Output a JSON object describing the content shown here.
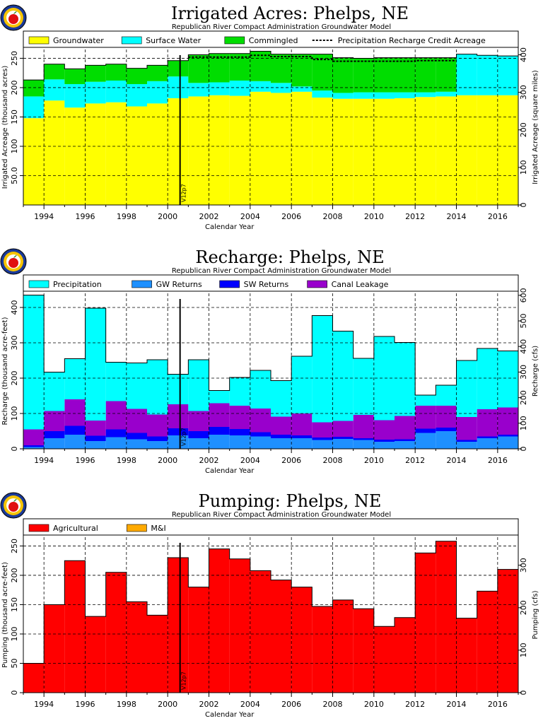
{
  "chart_data": [
    {
      "id": "acres",
      "type": "area",
      "title": "Irrigated Acres: Phelps, NE",
      "subtitle": "Republican River Compact Administration Groundwater Model",
      "xlabel": "Calendar Year",
      "ylabel": "Irrigated Acreage (thousand acres)",
      "ylabel_right": "Irrigated Acreage (square miles)",
      "xlim": [
        1993,
        2017
      ],
      "ylim": [
        0,
        265
      ],
      "ylim_right": [
        0,
        414.06
      ],
      "yticks": [
        "50.0",
        "100",
        "150",
        "200",
        "250"
      ],
      "yticks_right": [
        "0",
        "100",
        "200",
        "300",
        "400"
      ],
      "xticks": [
        "1994",
        "1996",
        "1998",
        "2000",
        "2002",
        "2004",
        "2006",
        "2008",
        "2010",
        "2012",
        "2014",
        "2016"
      ],
      "grid": true,
      "legend": "top",
      "marker": {
        "x": 2000.6,
        "label": "V12p7"
      },
      "stacked": true,
      "years": [
        1993,
        1994,
        1995,
        1996,
        1997,
        1998,
        1999,
        2000,
        2001,
        2002,
        2003,
        2004,
        2005,
        2006,
        2007,
        2008,
        2009,
        2010,
        2011,
        2012,
        2013,
        2014,
        2015,
        2016
      ],
      "series": [
        {
          "name": "Groundwater",
          "color": "#ffff00",
          "values": [
            148,
            178,
            166,
            173,
            175,
            168,
            173,
            182,
            185,
            187,
            186,
            193,
            191,
            193,
            183,
            181,
            181,
            181,
            182,
            184,
            185,
            187,
            187,
            187
          ]
        },
        {
          "name": "Surface Water",
          "color": "#00ffff",
          "values": [
            37,
            36,
            40,
            37,
            37,
            38,
            38,
            37,
            23,
            22,
            26,
            18,
            17,
            9,
            12,
            10,
            11,
            11,
            10,
            8,
            8,
            70,
            68,
            67
          ]
        },
        {
          "name": "Commingled",
          "color": "#00dd00",
          "values": [
            28,
            26,
            26,
            28,
            28,
            27,
            27,
            27,
            48,
            49,
            46,
            51,
            49,
            55,
            62,
            60,
            58,
            59,
            59,
            59,
            58,
            0,
            0,
            0
          ]
        }
      ],
      "line_series": {
        "name": "Precipitation Recharge Credit Acreage",
        "values": [
          null,
          null,
          null,
          null,
          null,
          null,
          null,
          null,
          252,
          252,
          252,
          255,
          253,
          253,
          248,
          245,
          245,
          245,
          245,
          246,
          246,
          null,
          null,
          null
        ]
      }
    },
    {
      "id": "recharge",
      "type": "area",
      "title": "Recharge: Phelps, NE",
      "subtitle": "Republican River Compact Administration Groundwater Model",
      "xlabel": "Calendar Year",
      "ylabel": "Recharge (thousand acre-feet)",
      "ylabel_right": "Recharge (cfs)",
      "xlim": [
        1993,
        2017
      ],
      "ylim": [
        0,
        440
      ],
      "ylim_right": [
        0,
        607.8
      ],
      "yticks": [
        "0",
        "100",
        "200",
        "300",
        "400"
      ],
      "yticks_right": [
        "0",
        "100",
        "200",
        "300",
        "400",
        "500",
        "600"
      ],
      "xticks": [
        "1994",
        "1996",
        "1998",
        "2000",
        "2002",
        "2004",
        "2006",
        "2008",
        "2010",
        "2012",
        "2014",
        "2016"
      ],
      "grid": true,
      "legend": "top",
      "marker": {
        "x": 2000.6,
        "label": "V12p7"
      },
      "stacked": true,
      "years": [
        1993,
        1994,
        1995,
        1996,
        1997,
        1998,
        1999,
        2000,
        2001,
        2002,
        2003,
        2004,
        2005,
        2006,
        2007,
        2008,
        2009,
        2010,
        2011,
        2012,
        2013,
        2014,
        2015,
        2016
      ],
      "series": [
        {
          "name": "GW Returns",
          "color": "#1e90ff",
          "values": [
            5,
            30,
            40,
            22,
            33,
            27,
            22,
            38,
            30,
            40,
            38,
            35,
            30,
            30,
            25,
            28,
            25,
            20,
            22,
            45,
            50,
            20,
            30,
            35
          ]
        },
        {
          "name": "SW Returns",
          "color": "#0000ff",
          "values": [
            5,
            20,
            25,
            15,
            22,
            18,
            13,
            20,
            20,
            22,
            18,
            12,
            10,
            8,
            7,
            6,
            5,
            6,
            5,
            12,
            10,
            5,
            5,
            5
          ]
        },
        {
          "name": "Canal Leakage",
          "color": "#9900cc",
          "values": [
            45,
            57,
            75,
            43,
            80,
            68,
            62,
            68,
            57,
            67,
            66,
            67,
            51,
            62,
            43,
            45,
            66,
            55,
            66,
            65,
            62,
            65,
            77,
            77
          ]
        },
        {
          "name": "Precipitation",
          "color": "#00ffff",
          "values": [
            380,
            110,
            115,
            318,
            110,
            130,
            155,
            85,
            145,
            36,
            80,
            108,
            102,
            162,
            302,
            254,
            160,
            237,
            208,
            30,
            58,
            160,
            172,
            160
          ]
        }
      ]
    },
    {
      "id": "pumping",
      "type": "area",
      "title": "Pumping: Phelps, NE",
      "subtitle": "Republican River Compact Administration Groundwater Model",
      "xlabel": "Calendar Year",
      "ylabel": "Pumping (thousand acre-feet)",
      "ylabel_right": "Pumping (cfs)",
      "xlim": [
        1993,
        2017
      ],
      "ylim": [
        0,
        265
      ],
      "ylim_right": [
        0,
        366.05
      ],
      "yticks": [
        "0",
        "50",
        "100",
        "150",
        "200",
        "250"
      ],
      "yticks_right": [
        "0",
        "100",
        "200",
        "300"
      ],
      "xticks": [
        "1994",
        "1996",
        "1998",
        "2000",
        "2002",
        "2004",
        "2006",
        "2008",
        "2010",
        "2012",
        "2014",
        "2016"
      ],
      "grid": true,
      "legend": "top",
      "marker": {
        "x": 2000.6,
        "label": "V12p7"
      },
      "stacked": true,
      "years": [
        1993,
        1994,
        1995,
        1996,
        1997,
        1998,
        1999,
        2000,
        2001,
        2002,
        2003,
        2004,
        2005,
        2006,
        2007,
        2008,
        2009,
        2010,
        2011,
        2012,
        2013,
        2014,
        2015,
        2016
      ],
      "series": [
        {
          "name": "Agricultural",
          "color": "#ff0000",
          "values": [
            50,
            150,
            225,
            130,
            205,
            155,
            132,
            230,
            180,
            245,
            228,
            208,
            192,
            180,
            147,
            158,
            143,
            113,
            128,
            238,
            258,
            127,
            173,
            210
          ]
        },
        {
          "name": "M&I",
          "color": "#ffaa00",
          "values": [
            0,
            0,
            0,
            0,
            0,
            0,
            0,
            0,
            0,
            0,
            0,
            0,
            0,
            0,
            0,
            0,
            0,
            0,
            0,
            0,
            0,
            0,
            0,
            0
          ]
        }
      ]
    }
  ]
}
